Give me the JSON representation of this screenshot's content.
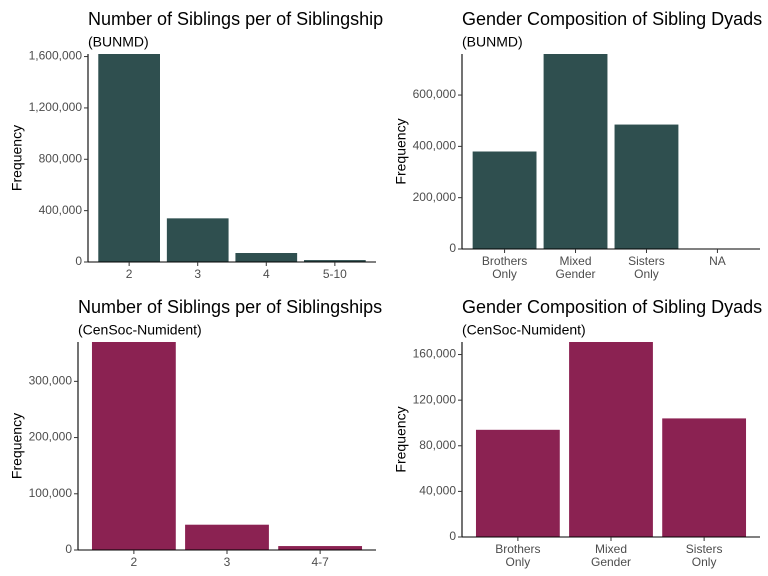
{
  "chart_data": [
    {
      "type": "bar",
      "title": "Number of Siblings per of Siblingship",
      "subtitle": "(BUNMD)",
      "ylabel": "Frequency",
      "xlabel": "",
      "categories": [
        "2",
        "3",
        "4",
        "5-10"
      ],
      "values": [
        1620000,
        340000,
        70000,
        15000
      ],
      "ylim": [
        0,
        1620000
      ],
      "yticks": [
        0,
        400000,
        800000,
        1200000,
        1600000
      ],
      "ytick_labels": [
        "0",
        "400,000",
        "800,000",
        "1,200,000",
        "1,600,000"
      ],
      "color": "#2f4f4f",
      "grid": false
    },
    {
      "type": "bar",
      "title": "Gender Composition of Sibling Dyads",
      "subtitle": "(BUNMD)",
      "ylabel": "Frequency",
      "xlabel": "",
      "categories": [
        [
          "Brothers",
          "Only"
        ],
        [
          "Mixed",
          "Gender"
        ],
        [
          "Sisters",
          "Only"
        ],
        [
          "NA"
        ]
      ],
      "values": [
        380000,
        760000,
        485000,
        1000
      ],
      "ylim": [
        0,
        760000
      ],
      "yticks": [
        0,
        200000,
        400000,
        600000
      ],
      "ytick_labels": [
        "0",
        "200,000",
        "400,000",
        "600,000"
      ],
      "color": "#2f4f4f",
      "grid": false
    },
    {
      "type": "bar",
      "title": "Number of Siblings per of Siblingships",
      "subtitle": "(CenSoc-Numident)",
      "ylabel": "Frequency",
      "xlabel": "",
      "categories": [
        "2",
        "3",
        "4-7"
      ],
      "values": [
        370000,
        45000,
        7000
      ],
      "ylim": [
        0,
        370000
      ],
      "yticks": [
        0,
        100000,
        200000,
        300000
      ],
      "ytick_labels": [
        "0",
        "100,000",
        "200,000",
        "300,000"
      ],
      "color": "#8b2252",
      "grid": false
    },
    {
      "type": "bar",
      "title": "Gender Composition of Sibling Dyads",
      "subtitle": "(CenSoc-Numident)",
      "ylabel": "Frequency",
      "xlabel": "",
      "categories": [
        [
          "Brothers",
          "Only"
        ],
        [
          "Mixed",
          "Gender"
        ],
        [
          "Sisters",
          "Only"
        ]
      ],
      "values": [
        94000,
        171000,
        104000
      ],
      "ylim": [
        0,
        171000
      ],
      "yticks": [
        0,
        40000,
        80000,
        120000,
        160000
      ],
      "ytick_labels": [
        "0",
        "40,000",
        "80,000",
        "120,000",
        "160,000"
      ],
      "color": "#8b2252",
      "grid": false
    }
  ]
}
